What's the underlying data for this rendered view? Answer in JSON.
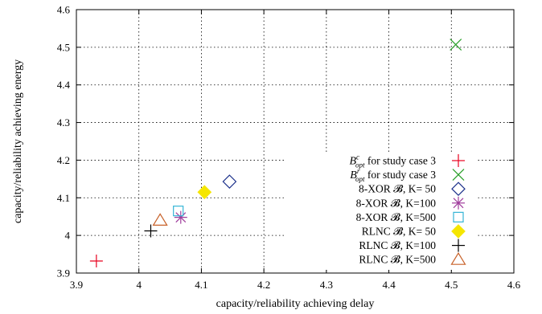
{
  "chart_data": {
    "type": "scatter",
    "title": "",
    "xlabel": "capacity/reliability achieving delay",
    "ylabel": "capacity/reliability achieving energy",
    "xlim": [
      3.9,
      4.6
    ],
    "ylim": [
      3.9,
      4.6
    ],
    "xticks": [
      "3.9",
      "4",
      "4.1",
      "4.2",
      "4.3",
      "4.4",
      "4.5",
      "4.6"
    ],
    "yticks": [
      "3.9",
      "4",
      "4.1",
      "4.2",
      "4.3",
      "4.4",
      "4.5",
      "4.6"
    ],
    "grid": "dotted",
    "legend_position": "bottom-right",
    "series": [
      {
        "name": "for study case 3",
        "math_symbol": "B",
        "math_super": "c",
        "math_sub": "opt",
        "marker": "plus",
        "color": "#e8001e",
        "x": 3.932,
        "y": 3.932
      },
      {
        "name": "for study case 3",
        "math_symbol": "B",
        "math_super": "r",
        "math_sub": "opt",
        "marker": "cross",
        "color": "#2aa02a",
        "x": 4.507,
        "y": 4.507
      },
      {
        "name": "8-XOR 𝓑, K= 50",
        "marker": "diamond-open",
        "color": "#1a2f8a",
        "x": 4.145,
        "y": 4.143
      },
      {
        "name": "8-XOR 𝓑, K=100",
        "marker": "star",
        "color": "#a03d9c",
        "x": 4.067,
        "y": 4.048
      },
      {
        "name": "8-XOR 𝓑, K=500",
        "marker": "square-open",
        "color": "#35b5d6",
        "x": 4.063,
        "y": 4.065
      },
      {
        "name": "RLNC 𝓑, K= 50",
        "marker": "diamond-filled",
        "color": "#f5e600",
        "x": 4.105,
        "y": 4.115
      },
      {
        "name": "RLNC 𝓑, K=100",
        "marker": "plus",
        "color": "#000000",
        "x": 4.019,
        "y": 4.012
      },
      {
        "name": "RLNC 𝓑, K=500",
        "marker": "triangle-open",
        "color": "#c8622a",
        "x": 4.034,
        "y": 4.04
      }
    ]
  }
}
